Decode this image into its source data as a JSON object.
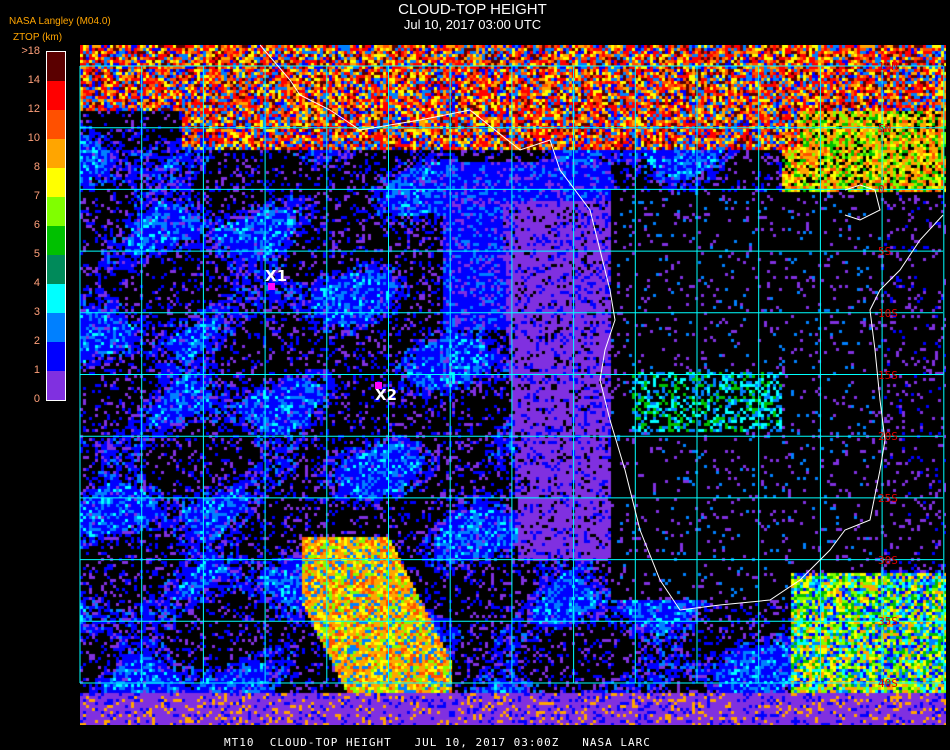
{
  "header": {
    "title": "CLOUD-TOP HEIGHT",
    "subtitle": "Jul 10, 2017 03:00 UTC"
  },
  "legend": {
    "source": "NASA Langley (M04.0)",
    "unit": "ZTOP (km)",
    "ticks": [
      ">18",
      "14",
      "12",
      "10",
      "8",
      "7",
      "6",
      "5",
      "4",
      "3",
      "2",
      "1",
      "0"
    ],
    "colors": [
      "#5a0000",
      "#ff0000",
      "#ff5000",
      "#ffa500",
      "#ffff00",
      "#80ff00",
      "#00c000",
      "#008a5a",
      "#00ffff",
      "#0080ff",
      "#0000ff",
      "#8030e0"
    ]
  },
  "markers": [
    {
      "label": "X1"
    },
    {
      "label": "X2"
    }
  ],
  "grid": {
    "color": "#00ffff",
    "lat_labels": [
      "10N",
      "5N",
      "0",
      "5S",
      "10S",
      "15S",
      "20S",
      "25S",
      "30S",
      "35S",
      "40S"
    ]
  },
  "coastline_color": "#ffffff",
  "footer": "MT10  CLOUD-TOP HEIGHT   JUL 10, 2017 03:00Z   NASA LARC"
}
